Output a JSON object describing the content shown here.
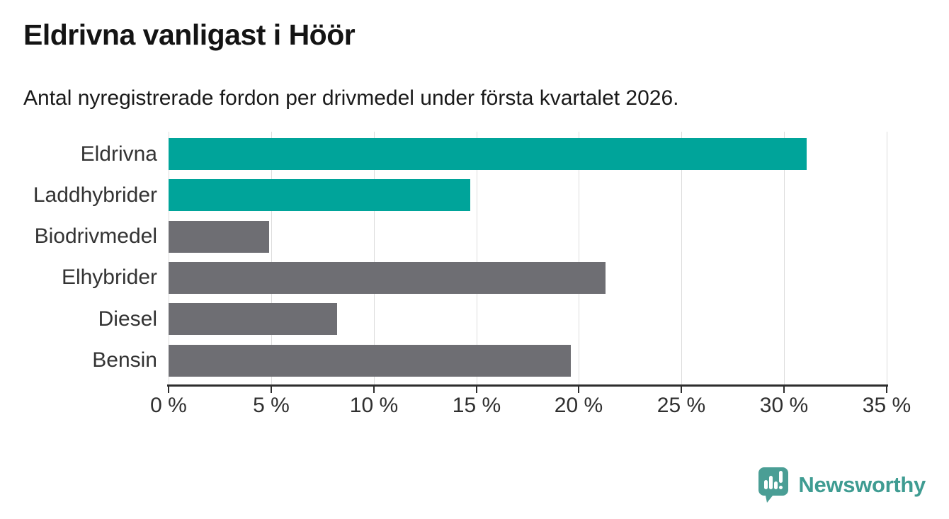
{
  "header": {
    "title": "Eldrivna vanligast i Höör",
    "subtitle": "Antal nyregistrerade fordon per drivmedel under första kvartalet 2026."
  },
  "chart_data": {
    "type": "bar",
    "orientation": "horizontal",
    "title": "Eldrivna vanligast i Höör",
    "subtitle": "Antal nyregistrerade fordon per drivmedel under första kvartalet 2026.",
    "categories": [
      "Eldrivna",
      "Laddhybrider",
      "Biodrivmedel",
      "Elhybrider",
      "Diesel",
      "Bensin"
    ],
    "values": [
      31.1,
      14.7,
      4.9,
      21.3,
      8.2,
      19.6
    ],
    "unit": "%",
    "xlabel": "",
    "ylabel": "",
    "xlim": [
      0,
      35
    ],
    "x_tick_step": 5,
    "x_tick_labels": [
      "0 %",
      "5 %",
      "10 %",
      "15 %",
      "20 %",
      "25 %",
      "30 %",
      "35 %"
    ],
    "grid": true,
    "legend": false,
    "colors": {
      "highlight": "#00a49a",
      "default": "#6e6e73",
      "highlighted_categories": [
        "Eldrivna",
        "Laddhybrider"
      ],
      "gridline": "#dcdcdc",
      "axis": "#2d2d2d"
    }
  },
  "footer": {
    "brand": "Newsworthy",
    "brand_color": "#3f9c92",
    "logo_color": "#4a9e95",
    "logo_icon": "newsworthy-speech-bubble-bar-chart-icon"
  }
}
